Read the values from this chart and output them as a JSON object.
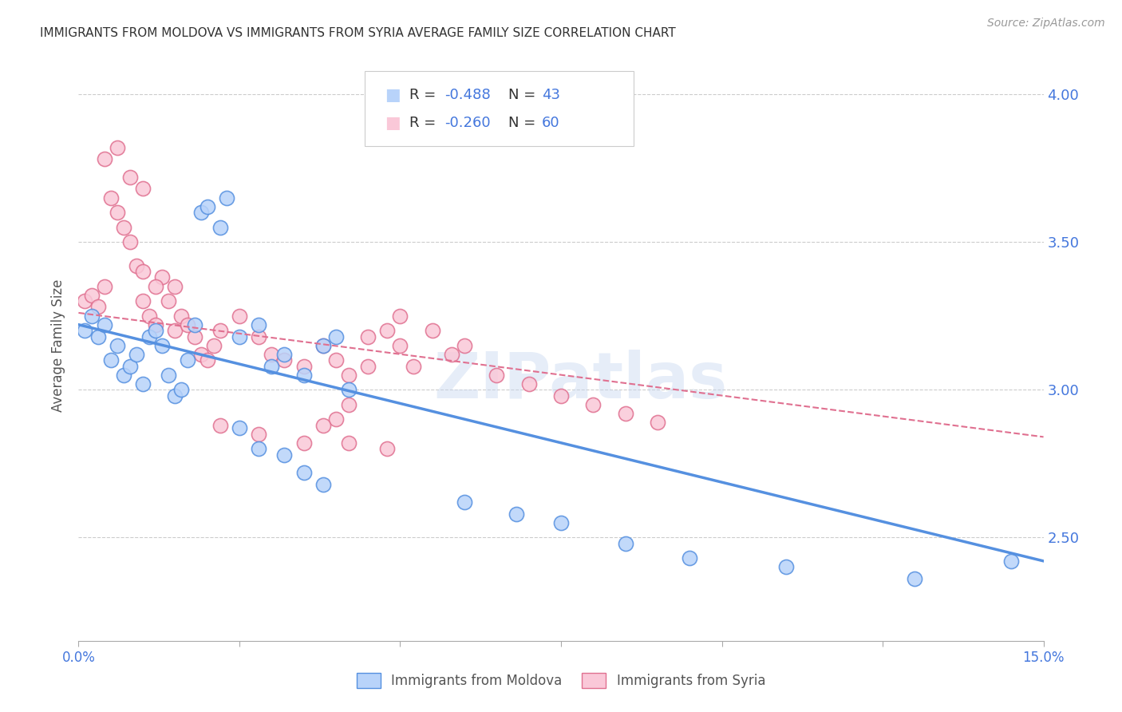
{
  "title": "IMMIGRANTS FROM MOLDOVA VS IMMIGRANTS FROM SYRIA AVERAGE FAMILY SIZE CORRELATION CHART",
  "source": "Source: ZipAtlas.com",
  "ylabel": "Average Family Size",
  "right_yticks": [
    2.5,
    3.0,
    3.5,
    4.0
  ],
  "xmin": 0.0,
  "xmax": 0.15,
  "ymin": 2.15,
  "ymax": 4.15,
  "grid_color": "#cccccc",
  "moldova_color": "#7ab3f5",
  "moldova_color_edge": "#5590e0",
  "moldova_fill": "#b8d3fa",
  "syria_color": "#f5a0c0",
  "syria_color_edge": "#e07090",
  "syria_fill": "#fac8d8",
  "moldova_R": "-0.488",
  "moldova_N": "43",
  "syria_R": "-0.260",
  "syria_N": "60",
  "moldova_scatter": [
    [
      0.001,
      3.2
    ],
    [
      0.002,
      3.25
    ],
    [
      0.003,
      3.18
    ],
    [
      0.004,
      3.22
    ],
    [
      0.005,
      3.1
    ],
    [
      0.006,
      3.15
    ],
    [
      0.007,
      3.05
    ],
    [
      0.008,
      3.08
    ],
    [
      0.009,
      3.12
    ],
    [
      0.01,
      3.02
    ],
    [
      0.011,
      3.18
    ],
    [
      0.012,
      3.2
    ],
    [
      0.013,
      3.15
    ],
    [
      0.014,
      3.05
    ],
    [
      0.015,
      2.98
    ],
    [
      0.016,
      3.0
    ],
    [
      0.017,
      3.1
    ],
    [
      0.018,
      3.22
    ],
    [
      0.019,
      3.6
    ],
    [
      0.02,
      3.62
    ],
    [
      0.022,
      3.55
    ],
    [
      0.023,
      3.65
    ],
    [
      0.025,
      3.18
    ],
    [
      0.028,
      3.22
    ],
    [
      0.03,
      3.08
    ],
    [
      0.032,
      3.12
    ],
    [
      0.035,
      3.05
    ],
    [
      0.038,
      3.15
    ],
    [
      0.04,
      3.18
    ],
    [
      0.042,
      3.0
    ],
    [
      0.025,
      2.87
    ],
    [
      0.028,
      2.8
    ],
    [
      0.032,
      2.78
    ],
    [
      0.035,
      2.72
    ],
    [
      0.038,
      2.68
    ],
    [
      0.06,
      2.62
    ],
    [
      0.068,
      2.58
    ],
    [
      0.075,
      2.55
    ],
    [
      0.085,
      2.48
    ],
    [
      0.095,
      2.43
    ],
    [
      0.11,
      2.4
    ],
    [
      0.13,
      2.36
    ],
    [
      0.145,
      2.42
    ]
  ],
  "syria_scatter": [
    [
      0.001,
      3.3
    ],
    [
      0.002,
      3.32
    ],
    [
      0.003,
      3.28
    ],
    [
      0.004,
      3.35
    ],
    [
      0.005,
      3.65
    ],
    [
      0.006,
      3.6
    ],
    [
      0.007,
      3.55
    ],
    [
      0.008,
      3.5
    ],
    [
      0.009,
      3.42
    ],
    [
      0.01,
      3.4
    ],
    [
      0.011,
      3.25
    ],
    [
      0.012,
      3.22
    ],
    [
      0.013,
      3.38
    ],
    [
      0.014,
      3.3
    ],
    [
      0.015,
      3.2
    ],
    [
      0.016,
      3.25
    ],
    [
      0.017,
      3.22
    ],
    [
      0.018,
      3.18
    ],
    [
      0.019,
      3.12
    ],
    [
      0.02,
      3.1
    ],
    [
      0.021,
      3.15
    ],
    [
      0.022,
      3.2
    ],
    [
      0.004,
      3.78
    ],
    [
      0.006,
      3.82
    ],
    [
      0.008,
      3.72
    ],
    [
      0.01,
      3.68
    ],
    [
      0.012,
      3.35
    ],
    [
      0.025,
      3.25
    ],
    [
      0.028,
      3.18
    ],
    [
      0.03,
      3.12
    ],
    [
      0.032,
      3.1
    ],
    [
      0.035,
      3.08
    ],
    [
      0.038,
      3.15
    ],
    [
      0.04,
      3.1
    ],
    [
      0.042,
      3.05
    ],
    [
      0.045,
      3.18
    ],
    [
      0.048,
      3.2
    ],
    [
      0.05,
      3.15
    ],
    [
      0.022,
      2.88
    ],
    [
      0.028,
      2.85
    ],
    [
      0.035,
      2.82
    ],
    [
      0.04,
      2.9
    ],
    [
      0.042,
      2.95
    ],
    [
      0.05,
      3.25
    ],
    [
      0.055,
      3.2
    ],
    [
      0.06,
      3.15
    ],
    [
      0.045,
      3.08
    ],
    [
      0.052,
      3.08
    ],
    [
      0.058,
      3.12
    ],
    [
      0.038,
      2.88
    ],
    [
      0.042,
      2.82
    ],
    [
      0.048,
      2.8
    ],
    [
      0.065,
      3.05
    ],
    [
      0.07,
      3.02
    ],
    [
      0.075,
      2.98
    ],
    [
      0.08,
      2.95
    ],
    [
      0.085,
      2.92
    ],
    [
      0.09,
      2.89
    ],
    [
      0.01,
      3.3
    ],
    [
      0.015,
      3.35
    ]
  ],
  "moldova_trend_x": [
    0.0,
    0.15
  ],
  "moldova_trend_y": [
    3.22,
    2.42
  ],
  "syria_trend_x": [
    0.0,
    0.15
  ],
  "syria_trend_y": [
    3.26,
    2.84
  ],
  "legend_moldova_label": "Immigrants from Moldova",
  "legend_syria_label": "Immigrants from Syria",
  "blue_text_color": "#4477dd",
  "right_axis_color": "#4477dd",
  "title_color": "#333333",
  "watermark_color": "#c8d8f0"
}
